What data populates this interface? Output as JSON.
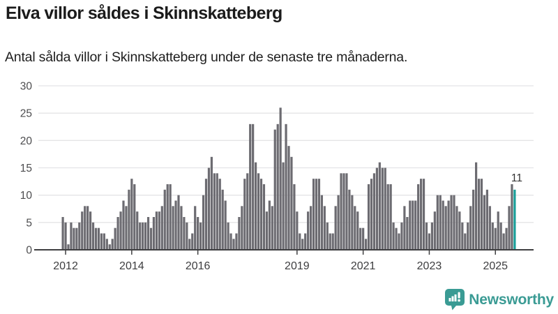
{
  "header": {
    "title": "Elva villor såldes i Skinnskatteberg",
    "subtitle": "Antal sålda villor i Skinnskatteberg under de senaste tre månaderna."
  },
  "footer": {
    "brand": "Newsworthy"
  },
  "chart_data": {
    "type": "bar",
    "title": "Elva villor såldes i Skinnskatteberg",
    "subtitle": "Antal sålda villor i Skinnskatteberg under de senaste tre månaderna.",
    "description": "Monthly bars (rolling three-month count of sold villas) from late 2011 to late 2025; the final bar is highlighted in teal with the value 11.",
    "values": [
      6,
      5,
      1,
      5,
      4,
      4,
      5,
      7,
      8,
      8,
      7,
      5,
      4,
      4,
      3,
      3,
      2,
      1,
      2,
      4,
      6,
      7,
      9,
      8,
      11,
      13,
      12,
      7,
      5,
      5,
      5,
      6,
      4,
      6,
      7,
      7,
      8,
      11,
      12,
      12,
      8,
      9,
      10,
      8,
      6,
      5,
      2,
      3,
      8,
      6,
      5,
      10,
      13,
      15,
      17,
      14,
      14,
      13,
      11,
      9,
      5,
      3,
      2,
      3,
      6,
      8,
      13,
      14,
      23,
      23,
      16,
      14,
      13,
      12,
      7,
      9,
      8,
      22,
      23,
      26,
      16,
      23,
      19,
      17,
      12,
      7,
      3,
      2,
      3,
      7,
      8,
      13,
      13,
      13,
      10,
      8,
      5,
      3,
      3,
      8,
      10,
      14,
      14,
      14,
      11,
      10,
      8,
      7,
      4,
      4,
      2,
      12,
      13,
      14,
      15,
      16,
      15,
      15,
      12,
      12,
      5,
      4,
      3,
      5,
      8,
      6,
      9,
      9,
      9,
      12,
      13,
      13,
      5,
      3,
      5,
      7,
      10,
      10,
      9,
      8,
      9,
      10,
      10,
      8,
      7,
      5,
      3,
      5,
      8,
      11,
      16,
      13,
      13,
      10,
      11,
      8,
      5,
      4,
      7,
      5,
      3,
      4,
      8,
      12,
      11
    ],
    "highlight_index": 164,
    "annotation": {
      "label": "11"
    },
    "ylim": [
      0,
      30
    ],
    "y_ticks": [
      0,
      5,
      10,
      15,
      20,
      25,
      30
    ],
    "x_ticks": [
      {
        "label": "2012",
        "month_index": 1
      },
      {
        "label": "2014",
        "month_index": 25
      },
      {
        "label": "2016",
        "month_index": 49
      },
      {
        "label": "2019",
        "month_index": 85
      },
      {
        "label": "2021",
        "month_index": 109
      },
      {
        "label": "2023",
        "month_index": 133
      },
      {
        "label": "2025",
        "month_index": 157
      }
    ],
    "grid": true,
    "legend": false,
    "colors": {
      "bar": "#6c6b71",
      "highlight": "#189e98",
      "grid": "#e4e4e6",
      "axis": "#3f3f41",
      "y_tick_label": "#4c4c4e",
      "x_tick_label": "#3d3d3f",
      "annotation": "#333333",
      "brand": "#3a9b94"
    }
  }
}
